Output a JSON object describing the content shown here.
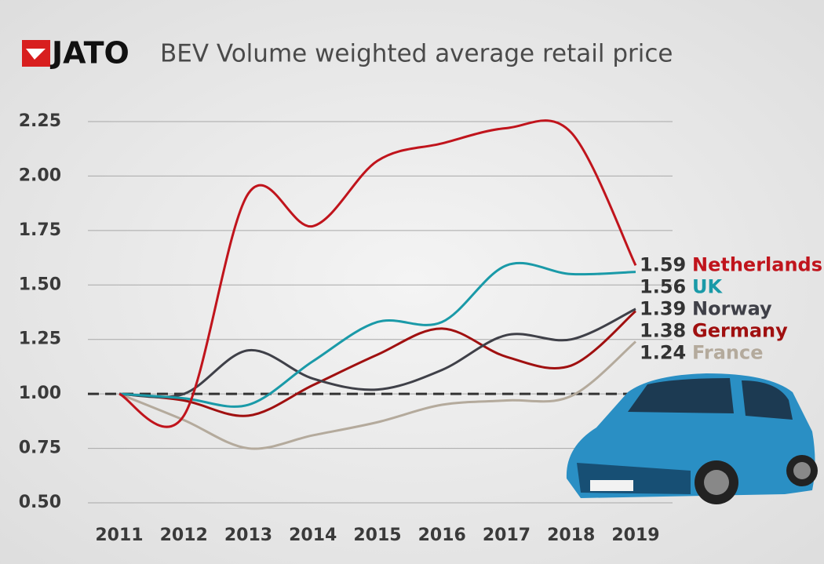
{
  "chart_data": {
    "type": "line",
    "logo": "JATO",
    "title": "BEV Volume weighted average retail price",
    "categories": [
      "2011",
      "2012",
      "2013",
      "2014",
      "2015",
      "2016",
      "2017",
      "2018",
      "2019"
    ],
    "series": [
      {
        "name": "Netherlands",
        "color": "#c0141c",
        "values": [
          1.0,
          0.9,
          1.92,
          1.77,
          2.07,
          2.15,
          2.22,
          2.2,
          1.59
        ]
      },
      {
        "name": "UK",
        "color": "#1a9aa8",
        "values": [
          1.0,
          0.98,
          0.95,
          1.15,
          1.33,
          1.33,
          1.59,
          1.55,
          1.56
        ]
      },
      {
        "name": "Norway",
        "color": "#3f4048",
        "values": [
          1.0,
          1.0,
          1.2,
          1.07,
          1.02,
          1.11,
          1.27,
          1.25,
          1.39
        ]
      },
      {
        "name": "Germany",
        "color": "#a01010",
        "values": [
          1.0,
          0.97,
          0.9,
          1.04,
          1.18,
          1.3,
          1.17,
          1.13,
          1.38
        ]
      },
      {
        "name": "France",
        "color": "#b4aa9c",
        "values": [
          1.0,
          0.88,
          0.75,
          0.81,
          0.87,
          0.95,
          0.97,
          0.99,
          1.24
        ]
      }
    ],
    "reference_line": 1,
    "ylim": [
      0.5,
      2.25
    ],
    "yticks": [
      {
        "value": 0.5,
        "label": "0.50"
      },
      {
        "value": 0.75,
        "label": "0.75"
      },
      {
        "value": 1,
        "label": "1.00"
      },
      {
        "value": 1.25,
        "label": "1.25"
      },
      {
        "value": 1.5,
        "label": "1.50"
      },
      {
        "value": 1.75,
        "label": "1.75"
      },
      {
        "value": 2,
        "label": "2.00"
      },
      {
        "value": 2.25,
        "label": "2.25"
      }
    ],
    "grid": true
  }
}
